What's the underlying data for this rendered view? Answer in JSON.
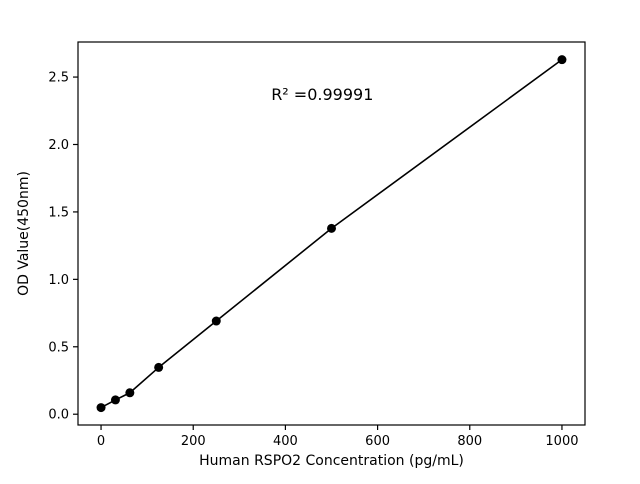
{
  "chart_data": {
    "type": "scatter",
    "title": "",
    "xlabel": "Human RSPO2 Concentration (pg/mL)",
    "ylabel": "OD Value(450nm)",
    "x": [
      0,
      31.25,
      62.5,
      125,
      250,
      500,
      1000
    ],
    "y": [
      0.049,
      0.106,
      0.159,
      0.347,
      0.691,
      1.378,
      2.629
    ],
    "line_through_points": true,
    "xlim": [
      -50,
      1050
    ],
    "ylim": [
      -0.08,
      2.76
    ],
    "xticks": {
      "values": [
        0,
        200,
        400,
        600,
        800,
        1000
      ],
      "labels": [
        "0",
        "200",
        "400",
        "600",
        "800",
        "1000"
      ]
    },
    "yticks": {
      "values": [
        0.0,
        0.5,
        1.0,
        1.5,
        2.0,
        2.5
      ],
      "labels": [
        "0.0",
        "0.5",
        "1.0",
        "1.5",
        "2.0",
        "2.5"
      ]
    },
    "annotation": {
      "text": "R² =0.99991",
      "x": 480,
      "y": 2.33
    },
    "legend": "none",
    "grid": false,
    "marker_color": "#000000",
    "line_color": "#000000",
    "background_color": "#ffffff"
  }
}
